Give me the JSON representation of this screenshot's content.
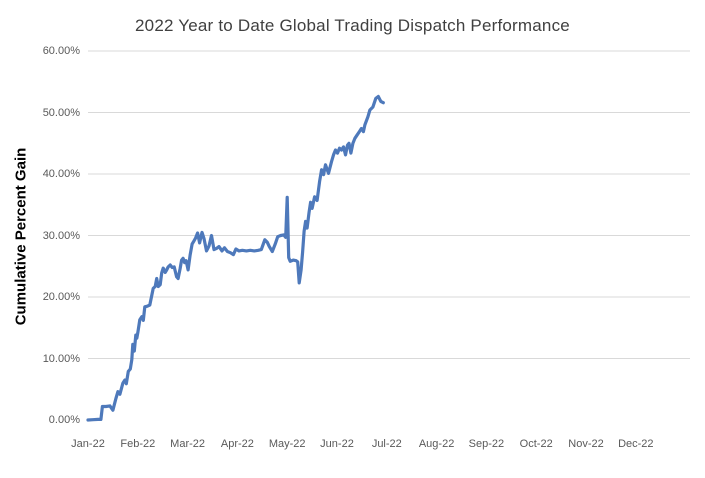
{
  "chart_data": {
    "type": "line",
    "title": "2022 Year to Date Global Trading Dispatch Performance",
    "xlabel": "",
    "ylabel": "Cumulative Percent Gain",
    "ylim": [
      0,
      60
    ],
    "xlim_months": [
      0,
      12.1
    ],
    "grid": "horizontal-only-no-zero-line",
    "legend": "none",
    "colors": {
      "line": "#4e79bb",
      "title_text": "#404040",
      "tick_text": "#595959",
      "gridline": "#d9d9d9",
      "background": "#ffffff"
    },
    "y_ticks": [
      {
        "pct": 0,
        "label": "0.00%"
      },
      {
        "pct": 10,
        "label": "10.00%"
      },
      {
        "pct": 20,
        "label": "20.00%"
      },
      {
        "pct": 30,
        "label": "30.00%"
      },
      {
        "pct": 40,
        "label": "40.00%"
      },
      {
        "pct": 50,
        "label": "50.00%"
      },
      {
        "pct": 60,
        "label": "60.00%"
      }
    ],
    "x_ticks": [
      {
        "month_index": 0,
        "label": "Jan-22"
      },
      {
        "month_index": 1,
        "label": "Feb-22"
      },
      {
        "month_index": 2,
        "label": "Mar-22"
      },
      {
        "month_index": 3,
        "label": "Apr-22"
      },
      {
        "month_index": 4,
        "label": "May-22"
      },
      {
        "month_index": 5,
        "label": "Jun-22"
      },
      {
        "month_index": 6,
        "label": "Jul-22"
      },
      {
        "month_index": 7,
        "label": "Aug-22"
      },
      {
        "month_index": 8,
        "label": "Sep-22"
      },
      {
        "month_index": 9,
        "label": "Oct-22"
      },
      {
        "month_index": 10,
        "label": "Nov-22"
      },
      {
        "month_index": 11,
        "label": "Dec-22"
      }
    ],
    "series": [
      {
        "name": "Cumulative Percent Gain",
        "x_unit": "months_since_jan_1_2022",
        "y_unit": "percent",
        "points": [
          [
            0.0,
            0.0
          ],
          [
            0.1,
            0.05
          ],
          [
            0.2,
            0.1
          ],
          [
            0.26,
            0.1
          ],
          [
            0.29,
            2.2
          ],
          [
            0.36,
            2.2
          ],
          [
            0.44,
            2.3
          ],
          [
            0.5,
            1.6
          ],
          [
            0.56,
            3.5
          ],
          [
            0.6,
            4.6
          ],
          [
            0.64,
            4.2
          ],
          [
            0.7,
            6.0
          ],
          [
            0.74,
            6.5
          ],
          [
            0.77,
            5.9
          ],
          [
            0.81,
            7.9
          ],
          [
            0.85,
            8.3
          ],
          [
            0.88,
            9.8
          ],
          [
            0.9,
            12.3
          ],
          [
            0.93,
            11.2
          ],
          [
            0.96,
            13.8
          ],
          [
            0.98,
            13.3
          ],
          [
            1.0,
            14.2
          ],
          [
            1.04,
            16.3
          ],
          [
            1.08,
            16.8
          ],
          [
            1.11,
            16.2
          ],
          [
            1.14,
            18.4
          ],
          [
            1.19,
            18.5
          ],
          [
            1.24,
            18.7
          ],
          [
            1.31,
            21.4
          ],
          [
            1.35,
            21.7
          ],
          [
            1.38,
            23.0
          ],
          [
            1.41,
            21.7
          ],
          [
            1.45,
            22.0
          ],
          [
            1.48,
            23.9
          ],
          [
            1.51,
            24.7
          ],
          [
            1.55,
            24.0
          ],
          [
            1.58,
            24.4
          ],
          [
            1.61,
            24.9
          ],
          [
            1.65,
            25.2
          ],
          [
            1.69,
            24.8
          ],
          [
            1.73,
            24.9
          ],
          [
            1.78,
            23.3
          ],
          [
            1.81,
            23.0
          ],
          [
            1.85,
            24.6
          ],
          [
            1.88,
            26.0
          ],
          [
            1.91,
            26.3
          ],
          [
            1.94,
            25.6
          ],
          [
            1.97,
            25.9
          ],
          [
            2.01,
            24.4
          ],
          [
            2.05,
            26.8
          ],
          [
            2.09,
            28.6
          ],
          [
            2.12,
            29.0
          ],
          [
            2.16,
            29.6
          ],
          [
            2.2,
            30.4
          ],
          [
            2.24,
            28.8
          ],
          [
            2.29,
            30.5
          ],
          [
            2.33,
            29.5
          ],
          [
            2.38,
            27.5
          ],
          [
            2.43,
            28.3
          ],
          [
            2.48,
            30.0
          ],
          [
            2.53,
            27.7
          ],
          [
            2.58,
            27.9
          ],
          [
            2.63,
            28.2
          ],
          [
            2.69,
            27.5
          ],
          [
            2.74,
            28.0
          ],
          [
            2.8,
            27.4
          ],
          [
            2.86,
            27.2
          ],
          [
            2.92,
            26.9
          ],
          [
            2.97,
            27.8
          ],
          [
            3.03,
            27.5
          ],
          [
            3.1,
            27.6
          ],
          [
            3.18,
            27.5
          ],
          [
            3.26,
            27.6
          ],
          [
            3.34,
            27.5
          ],
          [
            3.42,
            27.6
          ],
          [
            3.48,
            27.7
          ],
          [
            3.55,
            29.3
          ],
          [
            3.6,
            28.9
          ],
          [
            3.64,
            28.2
          ],
          [
            3.7,
            27.4
          ],
          [
            3.76,
            28.6
          ],
          [
            3.81,
            29.8
          ],
          [
            3.87,
            30.0
          ],
          [
            3.93,
            30.1
          ],
          [
            3.97,
            29.7
          ],
          [
            4.0,
            36.2
          ],
          [
            4.03,
            26.4
          ],
          [
            4.06,
            25.8
          ],
          [
            4.12,
            26.0
          ],
          [
            4.18,
            25.9
          ],
          [
            4.21,
            25.7
          ],
          [
            4.24,
            22.3
          ],
          [
            4.28,
            24.4
          ],
          [
            4.31,
            27.3
          ],
          [
            4.34,
            30.7
          ],
          [
            4.37,
            32.3
          ],
          [
            4.4,
            31.2
          ],
          [
            4.44,
            33.8
          ],
          [
            4.47,
            35.4
          ],
          [
            4.5,
            34.4
          ],
          [
            4.55,
            36.3
          ],
          [
            4.6,
            35.7
          ],
          [
            4.65,
            38.8
          ],
          [
            4.69,
            40.7
          ],
          [
            4.73,
            39.9
          ],
          [
            4.77,
            41.5
          ],
          [
            4.83,
            40.1
          ],
          [
            4.89,
            42.0
          ],
          [
            4.93,
            43.1
          ],
          [
            4.97,
            43.9
          ],
          [
            5.01,
            43.4
          ],
          [
            5.05,
            44.2
          ],
          [
            5.09,
            43.9
          ],
          [
            5.13,
            44.4
          ],
          [
            5.17,
            43.1
          ],
          [
            5.21,
            44.7
          ],
          [
            5.24,
            45.0
          ],
          [
            5.28,
            43.4
          ],
          [
            5.32,
            45.0
          ],
          [
            5.36,
            45.8
          ],
          [
            5.4,
            46.3
          ],
          [
            5.45,
            46.9
          ],
          [
            5.49,
            47.4
          ],
          [
            5.53,
            46.9
          ],
          [
            5.56,
            48.0
          ],
          [
            5.62,
            49.3
          ],
          [
            5.66,
            50.4
          ],
          [
            5.72,
            50.9
          ],
          [
            5.78,
            52.3
          ],
          [
            5.83,
            52.6
          ],
          [
            5.88,
            51.8
          ],
          [
            5.93,
            51.6
          ]
        ]
      }
    ]
  }
}
